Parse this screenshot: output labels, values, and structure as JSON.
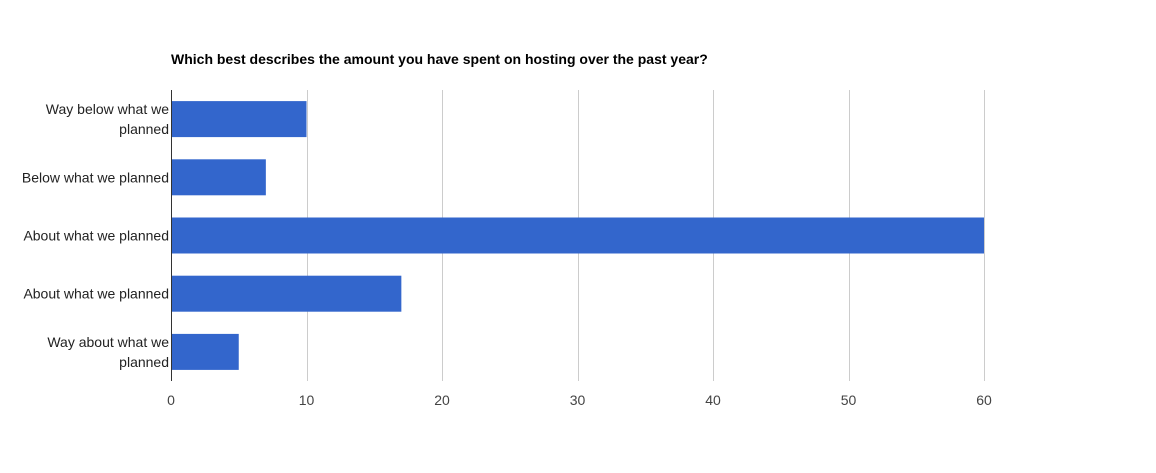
{
  "chart_data": {
    "type": "bar",
    "orientation": "horizontal",
    "title": "Which best describes the amount you have spent on hosting over the past year?",
    "categories": [
      [
        "Way below what we",
        "planned"
      ],
      [
        "Below what we planned"
      ],
      [
        "About what we planned"
      ],
      [
        "About what we planned"
      ],
      [
        "Way about what we",
        "planned"
      ]
    ],
    "values": [
      10,
      7,
      60,
      17,
      5
    ],
    "xlim": [
      0,
      60
    ],
    "xticks": [
      0,
      10,
      20,
      30,
      40,
      50,
      60
    ],
    "grid": true,
    "legend": "none",
    "bar_color": "#3366cc"
  }
}
